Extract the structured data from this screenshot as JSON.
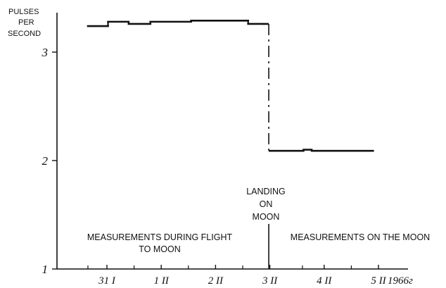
{
  "chart_data": {
    "type": "line",
    "title": "",
    "ylabel": "PULSES PER SECOND",
    "ylabel_lines": [
      "PULSES",
      "PER",
      "SECOND"
    ],
    "xlabel": "",
    "ylim": [
      1,
      3.4
    ],
    "yticks": [
      {
        "value": 1,
        "label": "1"
      },
      {
        "value": 2,
        "label": "2"
      },
      {
        "value": 3,
        "label": "3"
      }
    ],
    "xlim": [
      -0.6,
      5.5
    ],
    "xticks": [
      {
        "value": 0,
        "label": "31 I"
      },
      {
        "value": 1,
        "label": "1 II"
      },
      {
        "value": 2,
        "label": "2 II"
      },
      {
        "value": 3,
        "label": "3 II"
      },
      {
        "value": 4,
        "label": "4 II"
      },
      {
        "value": 5,
        "label": "5 II"
      },
      {
        "value": 5.4,
        "label": "1966г"
      }
    ],
    "minor_ticks": [
      -0.35,
      0.5,
      1.5,
      2.5,
      3.6,
      4.5
    ],
    "series": [
      {
        "segments": [
          {
            "x0": -0.35,
            "x1": 0.02,
            "y": 3.24
          },
          {
            "x0": 0.02,
            "x1": 0.4,
            "y": 3.28
          },
          {
            "x0": 0.4,
            "x1": 0.8,
            "y": 3.26
          },
          {
            "x0": 0.8,
            "x1": 1.55,
            "y": 3.28
          },
          {
            "x0": 1.55,
            "x1": 2.6,
            "y": 3.29
          },
          {
            "x0": 2.6,
            "x1": 2.88,
            "y": 3.26
          },
          {
            "x0": 3.0,
            "x1": 3.62,
            "y": 2.09
          },
          {
            "x0": 3.62,
            "x1": 3.77,
            "y": 2.1
          },
          {
            "x0": 3.77,
            "x1": 4.9,
            "y": 2.09
          }
        ],
        "transition": {
          "x": 2.98,
          "from": 3.26,
          "to": 2.09
        }
      }
    ],
    "event": {
      "x": 2.98,
      "label_lines": [
        "LANDING",
        "ON",
        "MOON"
      ]
    },
    "annotations": {
      "flight_lines": [
        "MEASUREMENTS DURING FLIGHT",
        "TO MOON"
      ],
      "moon_lines": [
        "MEASUREMENTS ON THE MOON"
      ]
    },
    "grid": false,
    "legend": "none"
  }
}
